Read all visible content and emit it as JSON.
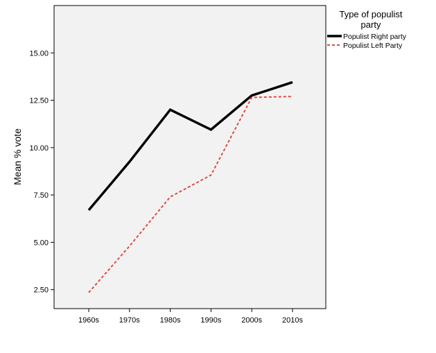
{
  "chart_data": {
    "type": "line",
    "title": "",
    "xlabel": "",
    "ylabel": "Mean % vote",
    "categories": [
      "1960s",
      "1970s",
      "1980s",
      "1990s",
      "2000s",
      "2010s"
    ],
    "yticks": [
      2.5,
      5.0,
      7.5,
      10.0,
      12.5,
      15.0
    ],
    "ytick_labels": [
      "2.50",
      "5.00",
      "7.50",
      "10.00",
      "12.50",
      "15.00"
    ],
    "ylim": [
      1.5,
      17.5
    ],
    "grid": false,
    "background": "#f2f2f2",
    "legend": {
      "title": "Type of populist party",
      "placement": "right-outside-top"
    },
    "series": [
      {
        "name": "Populist Right party",
        "values": [
          6.7,
          9.25,
          12.0,
          10.95,
          12.75,
          13.45
        ],
        "color": "#000000",
        "style": "solid"
      },
      {
        "name": "Populist Left Party",
        "values": [
          2.35,
          4.8,
          7.4,
          8.55,
          12.65,
          12.7
        ],
        "color": "#e8463c",
        "style": "dashed"
      }
    ]
  }
}
